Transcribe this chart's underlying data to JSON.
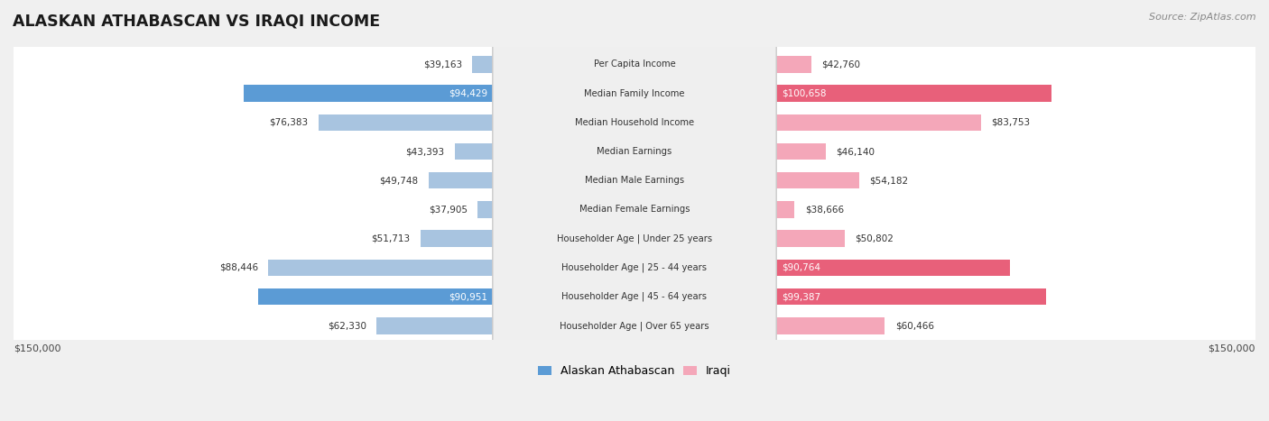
{
  "title": "ALASKAN ATHABASCAN VS IRAQI INCOME",
  "source": "Source: ZipAtlas.com",
  "categories": [
    "Per Capita Income",
    "Median Family Income",
    "Median Household Income",
    "Median Earnings",
    "Median Male Earnings",
    "Median Female Earnings",
    "Householder Age | Under 25 years",
    "Householder Age | 25 - 44 years",
    "Householder Age | 45 - 64 years",
    "Householder Age | Over 65 years"
  ],
  "alaskan_values": [
    39163,
    94429,
    76383,
    43393,
    49748,
    37905,
    51713,
    88446,
    90951,
    62330
  ],
  "iraqi_values": [
    42760,
    100658,
    83753,
    46140,
    54182,
    38666,
    50802,
    90764,
    99387,
    60466
  ],
  "alaskan_labels": [
    "$39,163",
    "$94,429",
    "$76,383",
    "$43,393",
    "$49,748",
    "$37,905",
    "$51,713",
    "$88,446",
    "$90,951",
    "$62,330"
  ],
  "iraqi_labels": [
    "$42,760",
    "$100,658",
    "$83,753",
    "$46,140",
    "$54,182",
    "$38,666",
    "$50,802",
    "$90,764",
    "$99,387",
    "$60,466"
  ],
  "alaskan_color_default": "#a8c4e0",
  "alaskan_color_highlight": "#5b9bd5",
  "iraqi_color_default": "#f4a7b9",
  "iraqi_color_highlight": "#e8607a",
  "alaskan_highlight": [
    1,
    8
  ],
  "iraqi_highlight": [
    1,
    7,
    8
  ],
  "max_value": 150000,
  "bg_color": "#f0f0f0",
  "row_bg_color": "#ffffff",
  "row_alt_bg_color": "#f7f7f7",
  "label_bg_color": "#efefef",
  "axis_label_left": "$150,000",
  "axis_label_right": "$150,000",
  "legend_alaskan": "Alaskan Athabascan",
  "legend_iraqi": "Iraqi"
}
